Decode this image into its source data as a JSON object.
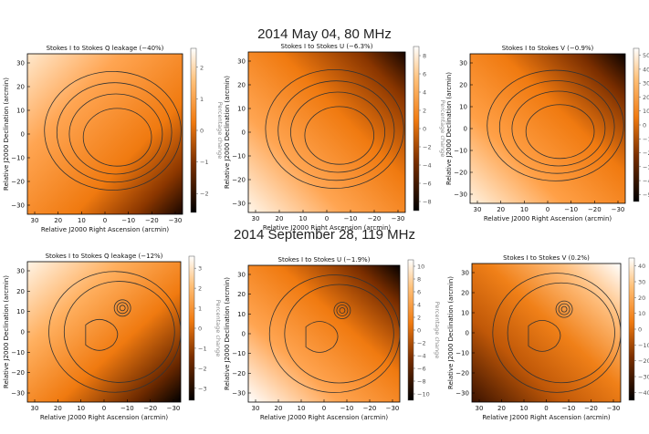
{
  "rows": [
    {
      "title": "2014 May 04, 80 MHz",
      "panels": [
        {
          "title": "Stokes I to Stokes Q leakage (−40%)",
          "xticks": [
            "30",
            "20",
            "10",
            "0",
            "−10",
            "−20",
            "−30"
          ],
          "yticks": [
            "30",
            "20",
            "10",
            "0",
            "−10",
            "−20",
            "−30"
          ],
          "cbticks": [
            "2",
            "1",
            "0",
            "−1",
            "−2"
          ],
          "cbmin": -2.6,
          "cbmax": 2.6,
          "gradient": "q1"
        },
        {
          "title": "Stokes I to Stokes U (−6.3%)",
          "xticks": [
            "30",
            "20",
            "10",
            "0",
            "−10",
            "−20",
            "−30"
          ],
          "yticks": [
            "30",
            "20",
            "10",
            "0",
            "−10",
            "−20",
            "−30"
          ],
          "cbticks": [
            "8",
            "6",
            "4",
            "2",
            "0",
            "−2",
            "−4",
            "−6",
            "−8"
          ],
          "cbmin": -9,
          "cbmax": 9,
          "gradient": "u1"
        },
        {
          "title": "Stokes I to Stokes V (−0.9%)",
          "xticks": [
            "30",
            "20",
            "10",
            "0",
            "−10",
            "−20",
            "−30"
          ],
          "yticks": [
            "30",
            "20",
            "10",
            "0",
            "−10",
            "−20",
            "−30"
          ],
          "cbticks": [
            "50",
            "40",
            "30",
            "20",
            "10",
            "0",
            "−10",
            "−20",
            "−30",
            "−40",
            "−50"
          ],
          "cbmin": -55,
          "cbmax": 55,
          "gradient": "v1"
        }
      ]
    },
    {
      "title": "2014 September 28, 119 MHz",
      "panels": [
        {
          "title": "Stokes I to Stokes Q leakage (−12%)",
          "xticks": [
            "30",
            "20",
            "10",
            "0",
            "−10",
            "−20",
            "−30"
          ],
          "yticks": [
            "30",
            "20",
            "10",
            "0",
            "−10",
            "−20",
            "−30"
          ],
          "cbticks": [
            "3",
            "2",
            "1",
            "0",
            "−1",
            "−2",
            "−3"
          ],
          "cbmin": -3.6,
          "cbmax": 3.6,
          "gradient": "q2"
        },
        {
          "title": "Stokes I to Stokes U (−1.9%)",
          "xticks": [
            "30",
            "20",
            "10",
            "0",
            "−10",
            "−20",
            "−30"
          ],
          "yticks": [
            "30",
            "20",
            "10",
            "0",
            "−10",
            "−20",
            "−30"
          ],
          "cbticks": [
            "10",
            "8",
            "6",
            "4",
            "2",
            "0",
            "−2",
            "−4",
            "−6",
            "−8",
            "−10"
          ],
          "cbmin": -11,
          "cbmax": 11,
          "gradient": "u2"
        },
        {
          "title": "Stokes I to Stokes V (0.2%)",
          "xticks": [
            "30",
            "20",
            "10",
            "0",
            "−10",
            "−20",
            "−30"
          ],
          "yticks": [
            "30",
            "20",
            "10",
            "0",
            "−10",
            "−20",
            "−30"
          ],
          "cbticks": [
            "40",
            "30",
            "20",
            "10",
            "0",
            "−10",
            "−20",
            "−30",
            "−40"
          ],
          "cbmin": -45,
          "cbmax": 45,
          "gradient": "v2"
        }
      ]
    }
  ],
  "axes": {
    "xlabel": "Relative J2000 Right Ascension (arcmin)",
    "ylabel": "Relative J2000 Declination (arcmin)",
    "cblabel": "Percentage change"
  },
  "colors": {
    "orange": "#f07a10",
    "black": "#000000",
    "white": "#ffffff",
    "contour": "#333333"
  }
}
